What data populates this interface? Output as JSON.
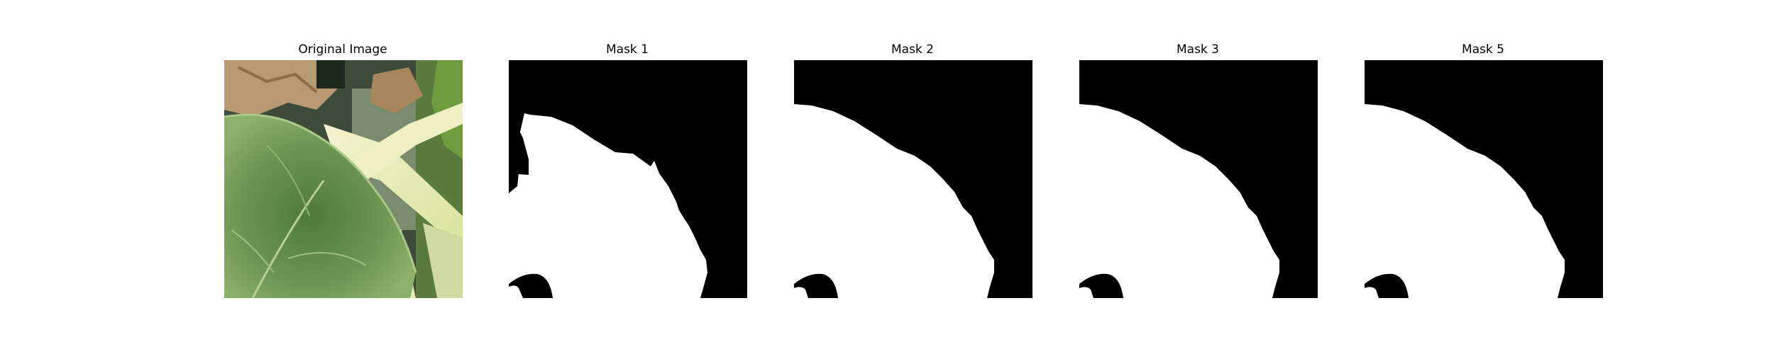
{
  "panels": [
    {
      "title": "Original Image"
    },
    {
      "title": "Mask 1"
    },
    {
      "title": "Mask 2"
    },
    {
      "title": "Mask 3"
    },
    {
      "title": "Mask 5"
    }
  ],
  "colors": {
    "background": "#ffffff",
    "mask_foreground": "#ffffff",
    "mask_background": "#000000",
    "leaf_green": "#5f8a45",
    "stem_yellow": "#e7ecb3",
    "dry_leaf_brown": "#b89a72"
  }
}
